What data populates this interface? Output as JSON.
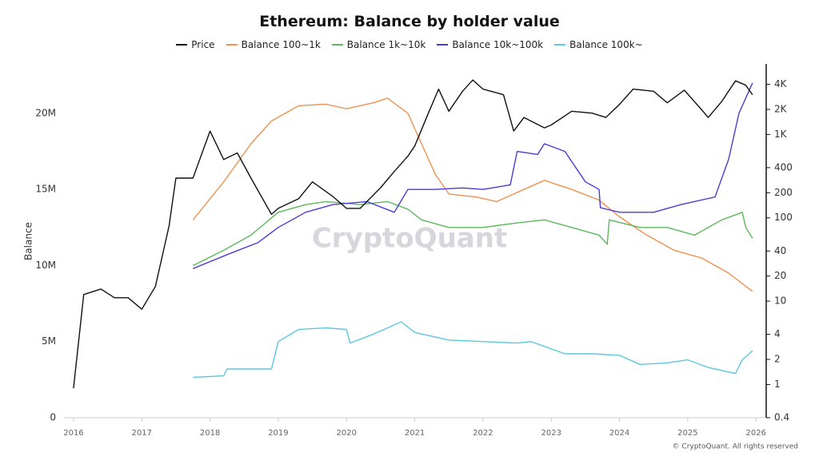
{
  "chart_data": {
    "type": "line",
    "title": "Ethereum: Balance by holder value",
    "y_label": "Balance",
    "watermark": "CryptoQuant",
    "footer": "© CryptoQuant. All rights reserved",
    "xlim": [
      2015.86,
      2026.15
    ],
    "xticks": [
      2016,
      2017,
      2018,
      2019,
      2020,
      2021,
      2022,
      2023,
      2024,
      2025,
      2026
    ],
    "ylim": [
      0,
      23250000
    ],
    "yticks": [
      0,
      {
        "value": 5000000,
        "label": "5M"
      },
      {
        "value": 10000000,
        "label": "10M"
      },
      {
        "value": 15000000,
        "label": "15M"
      },
      {
        "value": 20000000,
        "label": "20M"
      }
    ],
    "y2lim": [
      0.4,
      7030
    ],
    "y2_log": true,
    "y2ticks": [
      0.4,
      1,
      2,
      4,
      10,
      20,
      40,
      100,
      200,
      400,
      {
        "value": 1000,
        "label": "1K"
      },
      {
        "value": 2000,
        "label": "2K"
      },
      {
        "value": 4000,
        "label": "4K"
      }
    ],
    "series": [
      {
        "name": "Price",
        "color": "#111111",
        "axis": "y2",
        "x": [
          2016.0,
          2016.15,
          2016.4,
          2016.6,
          2016.8,
          2017.0,
          2017.2,
          2017.4,
          2017.5,
          2017.75,
          2018.0,
          2018.2,
          2018.4,
          2018.6,
          2018.9,
          2019.0,
          2019.3,
          2019.5,
          2019.8,
          2020.0,
          2020.2,
          2020.5,
          2020.7,
          2020.9,
          2021.0,
          2021.2,
          2021.35,
          2021.5,
          2021.7,
          2021.85,
          2022.0,
          2022.3,
          2022.45,
          2022.6,
          2022.9,
          2023.0,
          2023.3,
          2023.6,
          2023.8,
          2024.0,
          2024.2,
          2024.5,
          2024.7,
          2024.95,
          2025.2,
          2025.3,
          2025.5,
          2025.7,
          2025.85,
          2025.95
        ],
        "values": [
          0.9,
          12,
          14,
          11,
          11,
          8,
          15,
          80,
          300,
          300,
          1100,
          500,
          600,
          300,
          110,
          130,
          170,
          270,
          180,
          130,
          130,
          230,
          360,
          550,
          730,
          1800,
          3500,
          1900,
          3300,
          4500,
          3500,
          3000,
          1100,
          1600,
          1200,
          1300,
          1900,
          1800,
          1600,
          2300,
          3500,
          3300,
          2400,
          3400,
          2000,
          1600,
          2500,
          4400,
          3900,
          3000
        ]
      },
      {
        "name": "Balance 100~1k",
        "color": "#f0914f",
        "x": [
          2017.75,
          2018.2,
          2018.6,
          2018.9,
          2019.3,
          2019.7,
          2020.0,
          2020.4,
          2020.6,
          2020.9,
          2021.1,
          2021.3,
          2021.5,
          2021.9,
          2022.2,
          2022.6,
          2022.9,
          2023.3,
          2023.7,
          2024.0,
          2024.4,
          2024.8,
          2025.2,
          2025.6,
          2025.95
        ],
        "values": [
          13000000,
          15500000,
          18000000,
          19500000,
          20500000,
          20600000,
          20300000,
          20700000,
          21000000,
          20000000,
          18000000,
          16000000,
          14700000,
          14500000,
          14200000,
          15000000,
          15600000,
          15000000,
          14300000,
          13200000,
          12000000,
          11000000,
          10500000,
          9500000,
          8300000
        ]
      },
      {
        "name": "Balance 1k~10k",
        "color": "#5cb85c",
        "x": [
          2017.75,
          2018.2,
          2018.6,
          2019.0,
          2019.4,
          2019.7,
          2020.2,
          2020.6,
          2020.9,
          2021.1,
          2021.5,
          2022.0,
          2022.5,
          2022.9,
          2023.3,
          2023.7,
          2023.82,
          2023.85,
          2024.3,
          2024.7,
          2025.1,
          2025.5,
          2025.8,
          2025.85,
          2025.95
        ],
        "values": [
          10000000,
          11000000,
          12000000,
          13500000,
          14000000,
          14200000,
          14000000,
          14200000,
          13700000,
          13000000,
          12500000,
          12500000,
          12800000,
          13000000,
          12500000,
          12000000,
          11400000,
          13000000,
          12500000,
          12500000,
          12000000,
          13000000,
          13500000,
          12500000,
          11800000
        ]
      },
      {
        "name": "Balance 10k~100k",
        "color": "#4b3bd6",
        "x": [
          2017.75,
          2018.3,
          2018.7,
          2019.0,
          2019.4,
          2019.8,
          2020.3,
          2020.7,
          2020.9,
          2021.3,
          2021.7,
          2022.0,
          2022.4,
          2022.5,
          2022.8,
          2022.9,
          2023.2,
          2023.5,
          2023.7,
          2023.72,
          2024.0,
          2024.5,
          2024.9,
          2025.4,
          2025.6,
          2025.75,
          2025.95
        ],
        "values": [
          9800000,
          10800000,
          11500000,
          12500000,
          13500000,
          14000000,
          14200000,
          13500000,
          15000000,
          15000000,
          15100000,
          15000000,
          15300000,
          17500000,
          17300000,
          18000000,
          17500000,
          15500000,
          15000000,
          13800000,
          13500000,
          13500000,
          14000000,
          14500000,
          17000000,
          20000000,
          22000000
        ]
      },
      {
        "name": "Balance 100k~",
        "color": "#5bc8dc",
        "x": [
          2017.75,
          2018.2,
          2018.25,
          2018.9,
          2019.0,
          2019.3,
          2019.7,
          2020.0,
          2020.05,
          2020.4,
          2020.8,
          2021.0,
          2021.5,
          2022.0,
          2022.5,
          2022.7,
          2023.2,
          2023.6,
          2024.0,
          2024.3,
          2024.7,
          2025.0,
          2025.3,
          2025.6,
          2025.7,
          2025.8,
          2025.95
        ],
        "values": [
          2650000,
          2750000,
          3200000,
          3200000,
          5000000,
          5800000,
          5900000,
          5800000,
          4900000,
          5500000,
          6300000,
          5600000,
          5100000,
          5000000,
          4900000,
          5000000,
          4200000,
          4200000,
          4100000,
          3500000,
          3600000,
          3800000,
          3300000,
          3000000,
          2900000,
          3800000,
          4400000
        ]
      }
    ]
  }
}
